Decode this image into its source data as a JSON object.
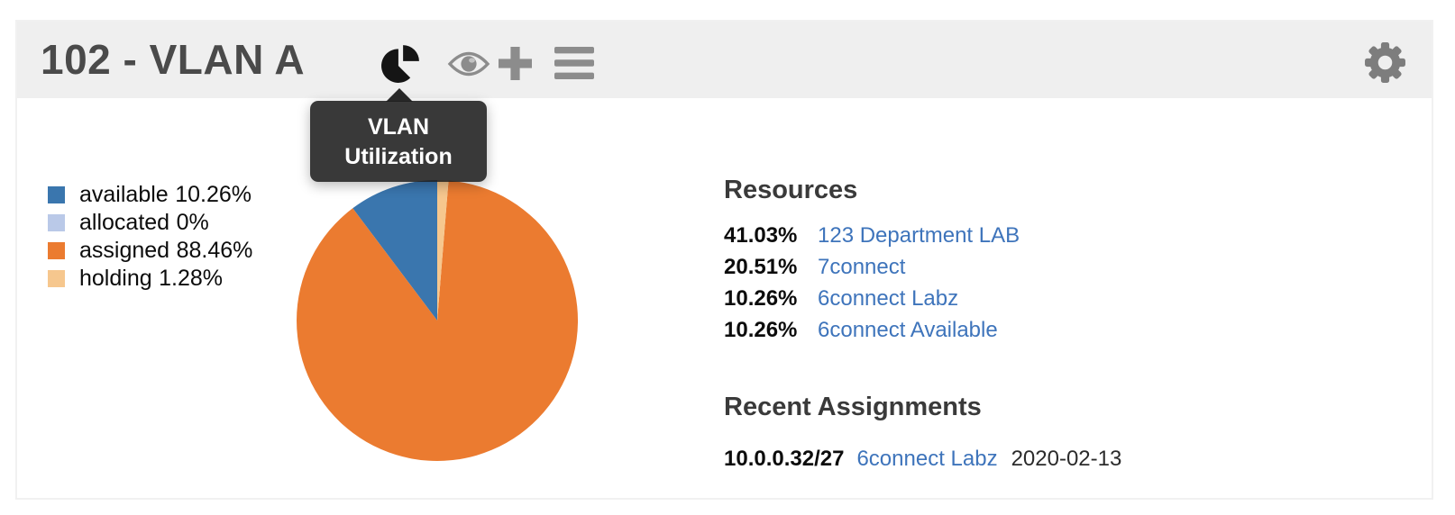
{
  "header": {
    "title": "102 - VLAN A",
    "icons": [
      {
        "name": "pie-chart-icon",
        "state": "active",
        "color": "#151515"
      },
      {
        "name": "eye-icon",
        "color": "#8c8c8c"
      },
      {
        "name": "plus-icon",
        "color": "#8c8c8c"
      },
      {
        "name": "menu-icon",
        "color": "#8c8c8c"
      },
      {
        "name": "gear-icon",
        "color": "#7d7d7d"
      }
    ]
  },
  "tooltip": {
    "line1": "VLAN",
    "line2": "Utilization"
  },
  "chart_data": {
    "type": "pie",
    "title": "VLAN Utilization",
    "legend_position": "left",
    "start_angle_deg": 90,
    "direction": "counterclockwise",
    "slices": [
      {
        "label": "available",
        "value": 10.26,
        "pct_label": "10.26%",
        "color": "#3a76ae"
      },
      {
        "label": "allocated",
        "value": 0,
        "pct_label": "0%",
        "color": "#bac9e8"
      },
      {
        "label": "assigned",
        "value": 88.46,
        "pct_label": "88.46%",
        "color": "#eb7b30"
      },
      {
        "label": "holding",
        "value": 1.28,
        "pct_label": "1.28%",
        "color": "#f6c78e"
      }
    ]
  },
  "resources": {
    "heading": "Resources",
    "items": [
      {
        "pct": "41.03%",
        "name": "123 Department LAB"
      },
      {
        "pct": "20.51%",
        "name": "7connect"
      },
      {
        "pct": "10.26%",
        "name": "6connect Labz"
      },
      {
        "pct": "10.26%",
        "name": "6connect Available"
      }
    ]
  },
  "recent_assignments": {
    "heading": "Recent Assignments",
    "items": [
      {
        "block": "10.0.0.32/27",
        "resource": "6connect Labz",
        "date": "2020-02-13"
      }
    ]
  },
  "colors": {
    "link": "#3e74bb",
    "header_bg": "#efefef",
    "panel_border": "#f1f1f1",
    "title_text": "#4a4a4a",
    "tooltip_bg": "rgba(30,30,30,0.88)"
  }
}
